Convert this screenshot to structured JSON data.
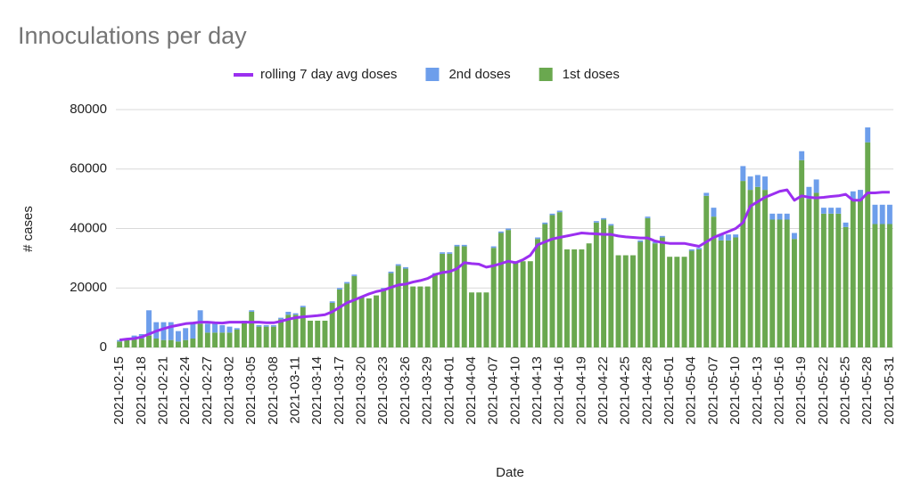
{
  "chart_data": {
    "type": "bar",
    "stacked": true,
    "title": "Innoculations per day",
    "x_label": "Date",
    "y_label": "# cases",
    "categories": [
      "2021-02-15",
      null,
      null,
      "2021-02-18",
      null,
      null,
      "2021-02-21",
      null,
      null,
      "2021-02-24",
      null,
      null,
      "2021-02-27",
      null,
      null,
      "2021-03-02",
      null,
      null,
      "2021-03-05",
      null,
      null,
      "2021-03-08",
      null,
      null,
      "2021-03-11",
      null,
      null,
      "2021-03-14",
      null,
      null,
      "2021-03-17",
      null,
      null,
      "2021-03-20",
      null,
      null,
      "2021-03-23",
      null,
      null,
      "2021-03-26",
      null,
      null,
      "2021-03-29",
      null,
      null,
      "2021-04-01",
      null,
      null,
      "2021-04-04",
      null,
      null,
      "2021-04-07",
      null,
      null,
      "2021-04-10",
      null,
      null,
      "2021-04-13",
      null,
      null,
      "2021-04-16",
      null,
      null,
      "2021-04-19",
      null,
      null,
      "2021-04-22",
      null,
      null,
      "2021-04-25",
      null,
      null,
      "2021-04-28",
      null,
      null,
      "2021-05-01",
      null,
      null,
      "2021-05-04",
      null,
      null,
      "2021-05-07",
      null,
      null,
      "2021-05-10",
      null,
      null,
      "2021-05-13",
      null,
      null,
      "2021-05-16",
      null,
      null,
      "2021-05-19",
      null,
      null,
      "2021-05-22",
      null,
      null,
      "2021-05-25",
      null,
      null,
      "2021-05-28",
      null,
      null,
      "2021-05-31"
    ],
    "series": [
      {
        "name": "rolling 7 day avg doses",
        "type": "line",
        "color": "#9b2ff0",
        "values": [
          2500,
          2800,
          3000,
          3500,
          4500,
          5500,
          6300,
          7000,
          7500,
          8000,
          8200,
          8500,
          8500,
          8300,
          8200,
          8500,
          8500,
          8500,
          8500,
          8500,
          8300,
          8300,
          8800,
          9500,
          10000,
          10300,
          10500,
          10700,
          11000,
          12000,
          13500,
          15000,
          16000,
          17000,
          18000,
          18800,
          19300,
          20200,
          21000,
          21300,
          22000,
          22500,
          23200,
          24500,
          25200,
          25500,
          26500,
          28500,
          28200,
          28000,
          27000,
          27500,
          28200,
          29000,
          28500,
          29500,
          31000,
          34500,
          35500,
          36500,
          37000,
          37500,
          38000,
          38500,
          38300,
          38200,
          38000,
          38000,
          37500,
          37200,
          37000,
          36800,
          36800,
          35800,
          35300,
          35000,
          35000,
          35000,
          34500,
          34000,
          35500,
          37000,
          38000,
          39000,
          40000,
          42000,
          47500,
          49000,
          50500,
          51500,
          52500,
          53000,
          49500,
          51000,
          50500,
          50300,
          50500,
          50800,
          51000,
          51500,
          49500,
          49500,
          52000,
          52000,
          52200,
          52200
        ]
      },
      {
        "name": "2nd doses",
        "type": "bar",
        "color": "#6d9eeb",
        "values": [
          500,
          500,
          1000,
          1500,
          8500,
          5500,
          6000,
          6000,
          3500,
          4000,
          5000,
          4500,
          3000,
          3000,
          2500,
          2000,
          500,
          500,
          500,
          500,
          500,
          500,
          500,
          1000,
          500,
          500,
          0,
          0,
          0,
          500,
          500,
          500,
          500,
          0,
          0,
          0,
          500,
          500,
          500,
          500,
          0,
          0,
          0,
          500,
          500,
          500,
          500,
          500,
          0,
          0,
          0,
          500,
          500,
          500,
          500,
          0,
          0,
          500,
          500,
          500,
          500,
          0,
          0,
          0,
          0,
          500,
          500,
          500,
          0,
          0,
          0,
          500,
          500,
          500,
          500,
          0,
          0,
          0,
          500,
          500,
          1000,
          3000,
          2000,
          2000,
          1000,
          5000,
          4500,
          4000,
          4500,
          2000,
          2000,
          2000,
          2000,
          3000,
          4000,
          4500,
          2000,
          2000,
          2000,
          1500,
          2500,
          3000,
          5000,
          6500,
          6500,
          6500
        ]
      },
      {
        "name": "1st doses",
        "type": "bar",
        "color": "#6aa84f",
        "values": [
          2000,
          2500,
          3000,
          3000,
          4000,
          3000,
          2500,
          2500,
          2000,
          2500,
          3000,
          8000,
          5000,
          5000,
          5000,
          5000,
          6000,
          8500,
          12000,
          7000,
          7000,
          7000,
          9500,
          11000,
          11000,
          13500,
          9000,
          9000,
          9000,
          15000,
          19500,
          21500,
          24000,
          17000,
          16500,
          17500,
          19500,
          25000,
          27500,
          26500,
          20500,
          20500,
          20500,
          24500,
          31500,
          31500,
          34000,
          34000,
          18500,
          18500,
          18500,
          33500,
          38500,
          39500,
          28500,
          29000,
          29000,
          36500,
          41500,
          44500,
          45500,
          33000,
          33000,
          33000,
          35000,
          42000,
          43000,
          41000,
          31000,
          31000,
          31000,
          35500,
          43500,
          35000,
          37000,
          30500,
          30500,
          30500,
          32500,
          33000,
          51000,
          44000,
          36000,
          36000,
          37000,
          56000,
          53000,
          54000,
          53000,
          43000,
          43000,
          43000,
          36500,
          63000,
          50000,
          52000,
          45000,
          45000,
          45000,
          40500,
          50000,
          50000,
          69000,
          41500,
          41500,
          41500
        ]
      }
    ],
    "ylim": [
      0,
      80000
    ],
    "yticks": [
      0,
      20000,
      40000,
      60000,
      80000
    ],
    "grid": true,
    "legend": "top"
  }
}
